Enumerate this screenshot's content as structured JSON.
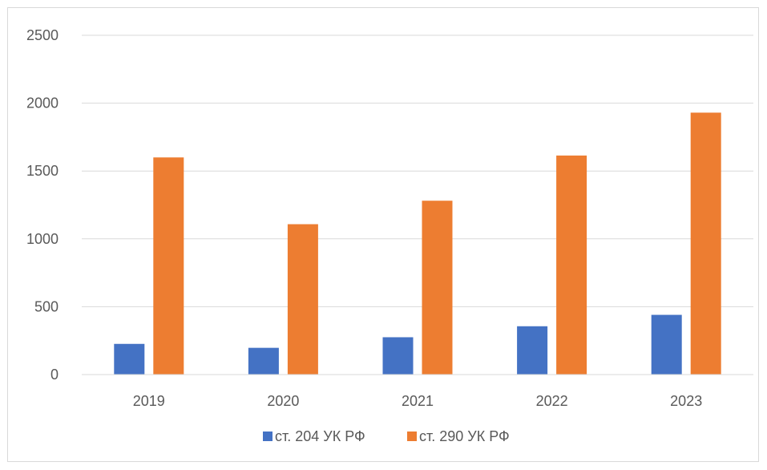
{
  "chart_data": {
    "type": "bar",
    "categories": [
      "2019",
      "2020",
      "2021",
      "2022",
      "2023"
    ],
    "series": [
      {
        "name": "ст. 204 УК РФ",
        "color": "#4472c4",
        "values": [
          226,
          197,
          275,
          356,
          440
        ]
      },
      {
        "name": "ст. 290 УК РФ",
        "color": "#ed7d31",
        "values": [
          1600,
          1108,
          1281,
          1614,
          1930
        ]
      }
    ],
    "title": "",
    "xlabel": "",
    "ylabel": "",
    "ylim": [
      0,
      2500
    ],
    "yticks": [
      0,
      500,
      1000,
      1500,
      2000,
      2500
    ],
    "grid": true,
    "legend": "bottom"
  }
}
